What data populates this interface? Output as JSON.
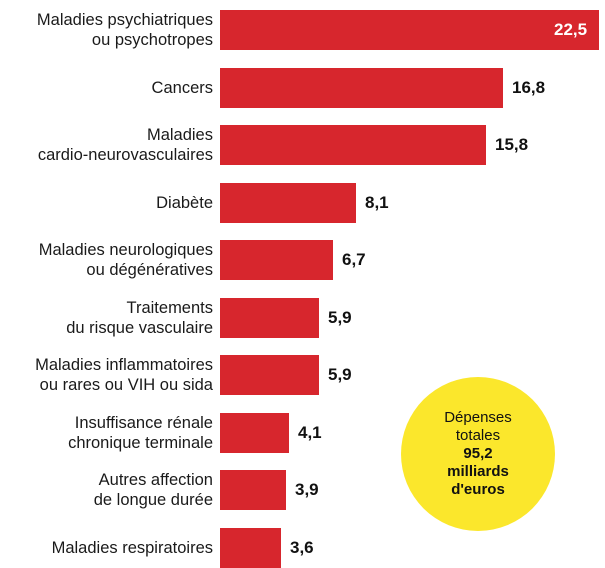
{
  "colors": {
    "bar": "#d7262d",
    "bubble": "#fbe72c"
  },
  "chart_data": {
    "type": "bar",
    "orientation": "horizontal",
    "categories": [
      "Maladies psychiatriques\nou psychotropes",
      "Cancers",
      "Maladies\ncardio-neurovasculaires",
      "Diabète",
      "Maladies neurologiques\nou dégénératives",
      "Traitements\ndu risque vasculaire",
      "Maladies inflammatoires\nou rares ou VIH ou sida",
      "Insuffisance rénale\nchronique terminale",
      "Autres affection\nde longue durée",
      "Maladies respiratoires"
    ],
    "values": [
      22.5,
      16.8,
      15.8,
      8.1,
      6.7,
      5.9,
      5.9,
      4.1,
      3.9,
      3.6
    ],
    "value_labels": [
      "22,5",
      "16,8",
      "15,8",
      "8,1",
      "6,7",
      "5,9",
      "5,9",
      "4,1",
      "3,9",
      "3,6"
    ],
    "xlim": [
      0,
      22.5
    ],
    "grid": false,
    "legend": "none"
  },
  "bubble": {
    "line1": "Dépenses",
    "line2": "totales",
    "line3": "95,2",
    "line4": "milliards",
    "line5": "d'euros"
  }
}
